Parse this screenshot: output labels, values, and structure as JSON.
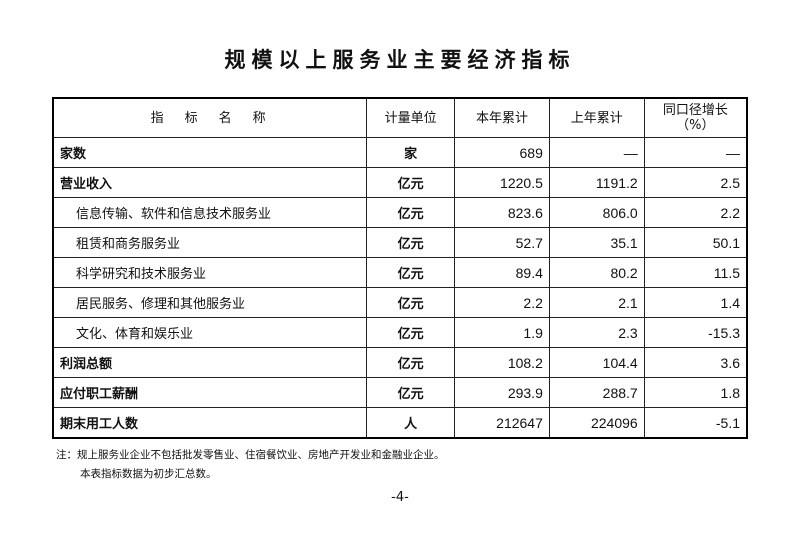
{
  "title": "规模以上服务业主要经济指标",
  "headers": [
    "指　标　名　称",
    "计量单位",
    "本年累计",
    "上年累计",
    "同口径增长",
    "（%）"
  ],
  "rows": [
    {
      "name": "家数",
      "unit": "家",
      "current": "689",
      "previous": "—",
      "growth": "—",
      "level": 0
    },
    {
      "name": "营业收入",
      "unit": "亿元",
      "current": "1220.5",
      "previous": "1191.2",
      "growth": "2.5",
      "level": 0
    },
    {
      "name": "信息传输、软件和信息技术服务业",
      "unit": "亿元",
      "current": "823.6",
      "previous": "806.0",
      "growth": "2.2",
      "level": 1
    },
    {
      "name": "租赁和商务服务业",
      "unit": "亿元",
      "current": "52.7",
      "previous": "35.1",
      "growth": "50.1",
      "level": 1
    },
    {
      "name": "科学研究和技术服务业",
      "unit": "亿元",
      "current": "89.4",
      "previous": "80.2",
      "growth": "11.5",
      "level": 1
    },
    {
      "name": "居民服务、修理和其他服务业",
      "unit": "亿元",
      "current": "2.2",
      "previous": "2.1",
      "growth": "1.4",
      "level": 1
    },
    {
      "name": "文化、体育和娱乐业",
      "unit": "亿元",
      "current": "1.9",
      "previous": "2.3",
      "growth": "-15.3",
      "level": 1
    },
    {
      "name": "利润总额",
      "unit": "亿元",
      "current": "108.2",
      "previous": "104.4",
      "growth": "3.6",
      "level": 0
    },
    {
      "name": "应付职工薪酬",
      "unit": "亿元",
      "current": "293.9",
      "previous": "288.7",
      "growth": "1.8",
      "level": 0
    },
    {
      "name": "期末用工人数",
      "unit": "人",
      "current": "212647",
      "previous": "224096",
      "growth": "-5.1",
      "level": 0
    }
  ],
  "note": [
    "注：规上服务业企业不包括批发零售业、住宿餐饮业、房地产开发业和金融业企业。",
    "本表指标数据为初步汇总数。"
  ],
  "page_number": "-4-"
}
